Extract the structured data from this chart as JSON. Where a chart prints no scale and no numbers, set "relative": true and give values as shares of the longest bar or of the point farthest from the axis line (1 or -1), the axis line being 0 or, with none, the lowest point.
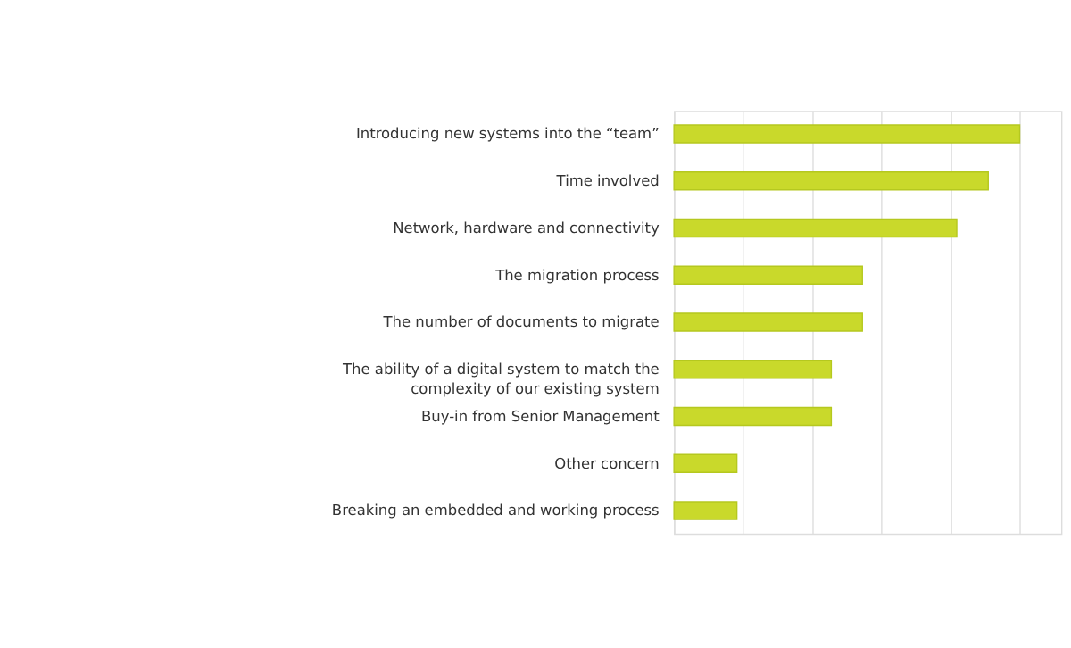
{
  "chart_data": {
    "type": "bar",
    "orientation": "horizontal",
    "relative": true,
    "grid": "x",
    "color": "#c9d92b",
    "categories": [
      "Introducing new systems into the “team”",
      "Time involved",
      "Network, hardware and connectivity",
      "The migration process",
      "The number of documents to migrate",
      "The ability of a digital system to match the complexity of our existing system",
      "Buy-in from Senior Management",
      "Other concern",
      "Breaking an embedded and working process"
    ],
    "values": [
      1,
      0.909,
      0.818,
      0.545,
      0.545,
      0.455,
      0.455,
      0.182,
      0.182
    ]
  }
}
